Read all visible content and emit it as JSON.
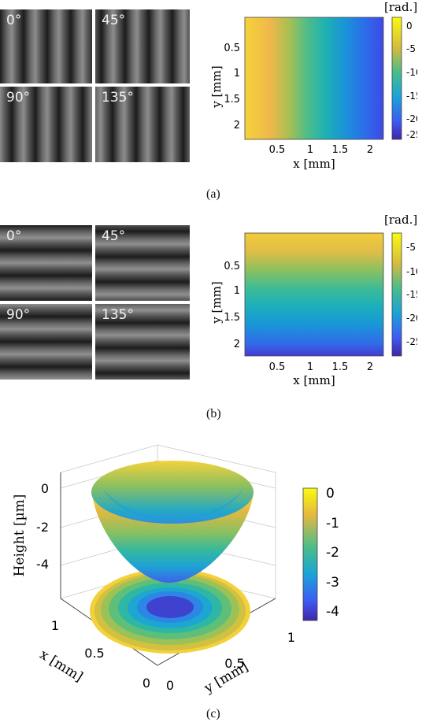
{
  "panels": {
    "a": {
      "caption": "(a)",
      "tiles": [
        "0°",
        "45°",
        "90°",
        "135°"
      ],
      "fringe_orientation": "vertical",
      "map": {
        "unit_label": "[rad.]",
        "xlabel": "x [mm]",
        "ylabel": "y [mm]",
        "xticks": [
          "0.5",
          "1",
          "1.5",
          "2"
        ],
        "yticks": [
          "0.5",
          "1",
          "1.5",
          "2"
        ],
        "colorbar_ticks": [
          "0",
          "-5",
          "-10",
          "-15",
          "-20",
          "-25"
        ],
        "gradient_direction": "left-to-right",
        "range": [
          -27,
          2
        ]
      }
    },
    "b": {
      "caption": "(b)",
      "tiles": [
        "0°",
        "45°",
        "90°",
        "135°"
      ],
      "fringe_orientation": "horizontal",
      "map": {
        "unit_label": "[rad.]",
        "xlabel": "x [mm]",
        "ylabel": "y [mm]",
        "xticks": [
          "0.5",
          "1",
          "1.5",
          "2"
        ],
        "yticks": [
          "0.5",
          "1",
          "1.5",
          "2"
        ],
        "colorbar_ticks": [
          "-5",
          "-10",
          "-15",
          "-20",
          "-25"
        ],
        "gradient_direction": "top-to-bottom",
        "range": [
          -29,
          -2
        ]
      }
    },
    "c": {
      "caption": "(c)",
      "zlabel": "Height [µm]",
      "xlabel": "x [mm]",
      "ylabel": "y [mm]",
      "zticks": [
        "0",
        "-2",
        "-4"
      ],
      "xticks": [
        "1",
        "0.5",
        "0"
      ],
      "yticks": [
        "0",
        "0.5",
        "1"
      ],
      "colorbar_ticks": [
        "0",
        "-1",
        "-2",
        "-3",
        "-4"
      ]
    }
  },
  "colors": {
    "parula_yellow": "#f9fb0e",
    "parula_orange": "#f5b93a",
    "parula_green": "#37b89d",
    "parula_cyan": "#1aa3d8",
    "parula_blue": "#3d5bf2",
    "parula_navy": "#3e26a8"
  }
}
